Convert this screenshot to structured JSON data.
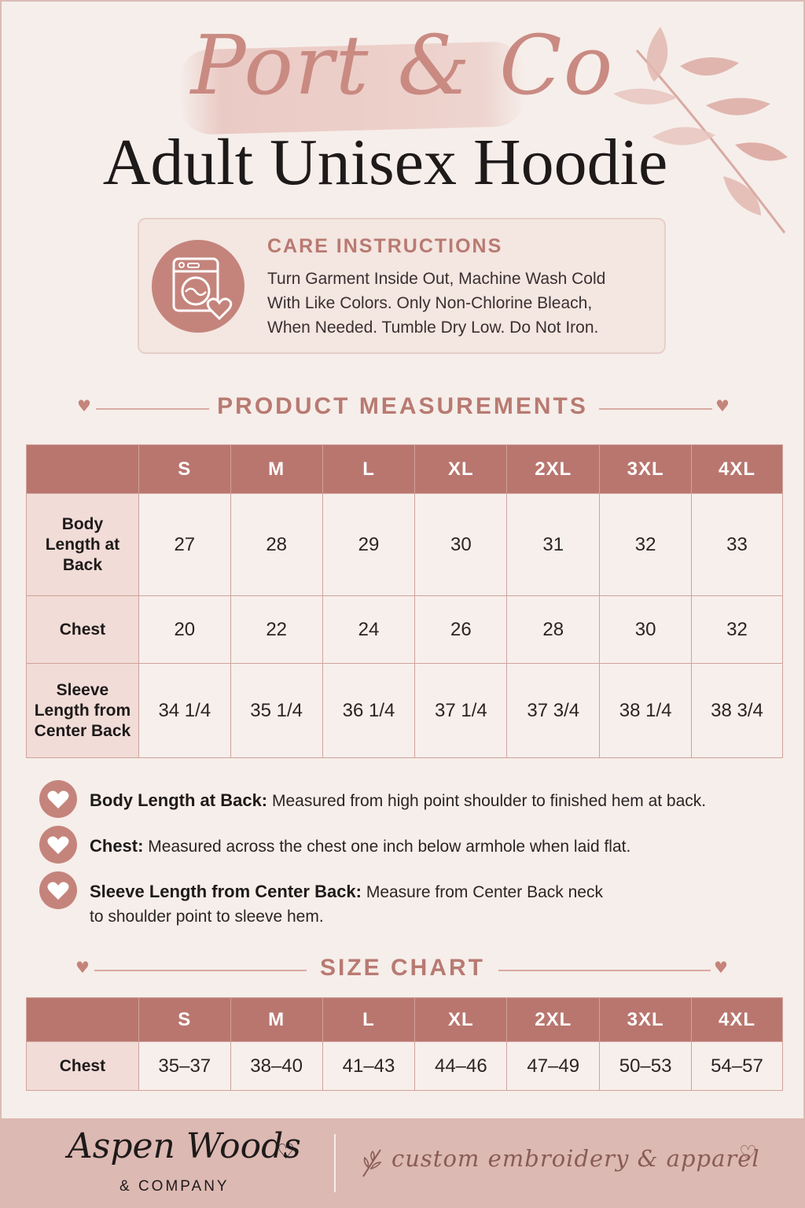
{
  "header": {
    "script_title": "Port & Co",
    "title": "Adult Unisex Hoodie"
  },
  "care": {
    "icon": "washing-machine-heart-icon",
    "heading": "CARE INSTRUCTIONS",
    "lines": [
      "Turn Garment Inside Out, Machine Wash Cold",
      "With Like Colors. Only Non-Chlorine Bleach,",
      "When Needed. Tumble Dry Low. Do Not Iron."
    ]
  },
  "measurements": {
    "heading": "PRODUCT MEASUREMENTS",
    "sizes": [
      "S",
      "M",
      "L",
      "XL",
      "2XL",
      "3XL",
      "4XL"
    ],
    "rows": [
      {
        "label_lines": [
          "Body",
          "Length at",
          "Back"
        ],
        "values": [
          "27",
          "28",
          "29",
          "30",
          "31",
          "32",
          "33"
        ]
      },
      {
        "label_lines": [
          "Chest"
        ],
        "values": [
          "20",
          "22",
          "24",
          "26",
          "28",
          "30",
          "32"
        ]
      },
      {
        "label_lines": [
          "Sleeve",
          "Length from",
          "Center Back"
        ],
        "values": [
          "34 1/4",
          "35 1/4",
          "36 1/4",
          "37 1/4",
          "37 3/4",
          "38 1/4",
          "38 3/4"
        ]
      }
    ]
  },
  "notes": [
    {
      "term": "Body Length at Back:",
      "desc": "Measured from high point shoulder to finished hem at back.",
      "desc2": ""
    },
    {
      "term": "Chest:",
      "desc": "Measured across the chest one inch below armhole when laid flat.",
      "desc2": ""
    },
    {
      "term": "Sleeve Length from Center Back:",
      "desc": "Measure from Center Back neck",
      "desc2": "to shoulder point to sleeve hem."
    }
  ],
  "size_chart": {
    "heading": "SIZE CHART",
    "sizes": [
      "S",
      "M",
      "L",
      "XL",
      "2XL",
      "3XL",
      "4XL"
    ],
    "row_label": "Chest",
    "values": [
      "35–37",
      "38–40",
      "41–43",
      "44–46",
      "47–49",
      "50–53",
      "54–57"
    ]
  },
  "footer": {
    "brand": "Aspen Woods",
    "company": "& COMPANY",
    "tagline": "custom embroidery & apparel"
  },
  "colors": {
    "accent": "#b9766f",
    "heading": "#b87a72",
    "background": "#f6eeea"
  }
}
